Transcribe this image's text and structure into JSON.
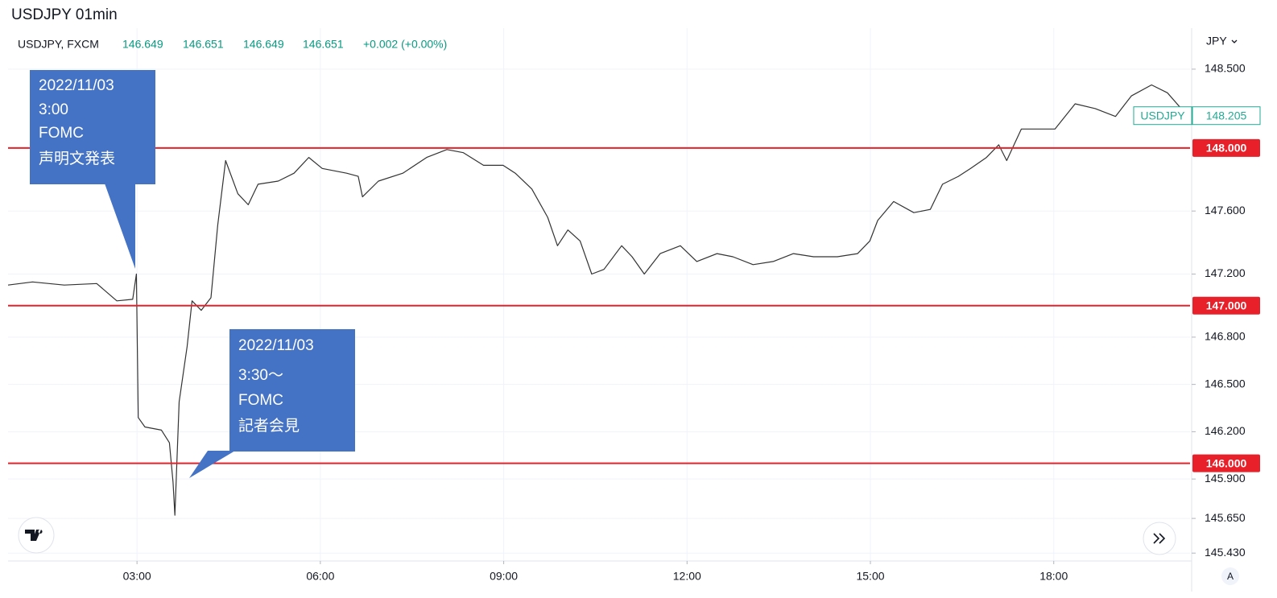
{
  "chart_data": {
    "type": "line",
    "title": "USDJPY 01min",
    "legend": {
      "symbol": "USDJPY, FXCM",
      "ohlc": [
        146.649,
        146.651,
        146.649,
        146.651
      ],
      "change": "+0.002 (+0.00%)"
    },
    "currency": "JPY",
    "x": [
      0.89,
      1.29,
      1.81,
      2.34,
      2.67,
      2.93,
      2.99,
      3.02,
      3.13,
      3.4,
      3.53,
      3.59,
      3.62,
      3.69,
      3.82,
      3.9,
      4.05,
      4.21,
      4.32,
      4.45,
      4.65,
      4.82,
      4.98,
      5.31,
      5.57,
      5.81,
      6.03,
      6.43,
      6.62,
      6.69,
      6.95,
      7.35,
      7.74,
      8.07,
      8.34,
      8.67,
      8.99,
      9.19,
      9.46,
      9.72,
      9.88,
      10.05,
      10.25,
      10.44,
      10.64,
      10.93,
      11.1,
      11.3,
      11.56,
      11.89,
      12.16,
      12.49,
      12.75,
      13.08,
      13.41,
      13.74,
      14.07,
      14.46,
      14.79,
      14.99,
      15.12,
      15.38,
      15.71,
      15.98,
      16.18,
      16.44,
      16.64,
      16.9,
      17.1,
      17.23,
      17.47,
      17.76,
      18.02,
      18.35,
      18.68,
      19.01,
      19.27,
      19.6,
      19.86,
      20.13
    ],
    "series": [
      {
        "name": "USDJPY",
        "color": "#333333",
        "values": [
          147.13,
          147.15,
          147.13,
          147.14,
          147.03,
          147.04,
          147.2,
          146.29,
          146.23,
          146.21,
          146.13,
          145.88,
          145.67,
          146.39,
          146.74,
          147.03,
          146.97,
          147.05,
          147.51,
          147.92,
          147.71,
          147.64,
          147.77,
          147.79,
          147.84,
          147.94,
          147.87,
          147.84,
          147.82,
          147.69,
          147.79,
          147.84,
          147.94,
          147.99,
          147.97,
          147.89,
          147.89,
          147.84,
          147.74,
          147.56,
          147.38,
          147.48,
          147.41,
          147.2,
          147.23,
          147.38,
          147.31,
          147.2,
          147.33,
          147.38,
          147.28,
          147.33,
          147.31,
          147.26,
          147.28,
          147.33,
          147.31,
          147.31,
          147.33,
          147.41,
          147.54,
          147.66,
          147.59,
          147.61,
          147.77,
          147.82,
          147.87,
          147.94,
          148.02,
          147.92,
          148.12,
          148.12,
          148.12,
          148.28,
          148.25,
          148.2,
          148.33,
          148.4,
          148.35,
          148.23
        ]
      }
    ],
    "xlim": [
      0.89,
      20.23
    ],
    "xticks": [
      {
        "value": 3,
        "label": "03:00"
      },
      {
        "value": 6,
        "label": "06:00"
      },
      {
        "value": 9,
        "label": "09:00"
      },
      {
        "value": 12,
        "label": "12:00"
      },
      {
        "value": 15,
        "label": "15:00"
      },
      {
        "value": 18,
        "label": "18:00"
      }
    ],
    "ylim": [
      145.38,
      148.76
    ],
    "yticks": [
      {
        "value": 145.43,
        "label": "145.430"
      },
      {
        "value": 145.65,
        "label": "145.650"
      },
      {
        "value": 145.9,
        "label": "145.900"
      },
      {
        "value": 146.2,
        "label": "146.200"
      },
      {
        "value": 146.5,
        "label": "146.500"
      },
      {
        "value": 146.8,
        "label": "146.800"
      },
      {
        "value": 147.2,
        "label": "147.200"
      },
      {
        "value": 147.6,
        "label": "147.600"
      },
      {
        "value": 148.5,
        "label": "148.500"
      }
    ],
    "levels": [
      {
        "value": 148,
        "label": "148.000"
      },
      {
        "value": 147,
        "label": "147.000"
      },
      {
        "value": 146,
        "label": "146.000"
      }
    ],
    "level_color": "#e8202a",
    "last_price": {
      "value": 148.205,
      "label": "148.205"
    },
    "grid": true,
    "annotations": [
      {
        "lines": [
          "2022/11/03",
          "3:00",
          "FOMC",
          "声明文発表"
        ]
      },
      {
        "lines": [
          "2022/11/03",
          "3:30～",
          "FOMC",
          "記者会見"
        ]
      }
    ],
    "scale_mode": "A"
  }
}
